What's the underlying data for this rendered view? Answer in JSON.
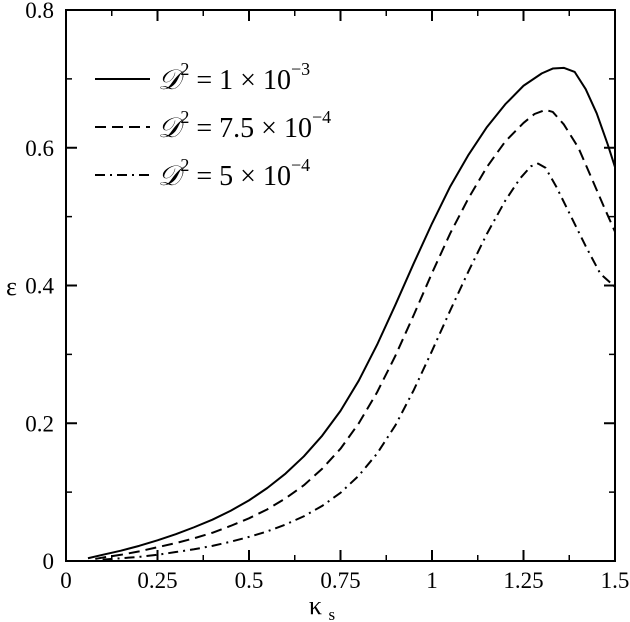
{
  "chart_data": {
    "type": "line",
    "xlabel": "κ",
    "xlabel_sub": "s",
    "ylabel": "ε",
    "xlim": [
      0,
      1.5
    ],
    "ylim": [
      0,
      0.8
    ],
    "grid": false,
    "legend_position": "top-left",
    "x_ticks": [
      0,
      0.25,
      0.5,
      0.75,
      1,
      1.25,
      1.5
    ],
    "x_tick_labels": [
      "0",
      "0.25",
      "0.5",
      "0.75",
      "1",
      "1.25",
      "1.5"
    ],
    "y_ticks": [
      0,
      0.2,
      0.4,
      0.6,
      0.8
    ],
    "y_tick_labels": [
      "0",
      "0.2",
      "0.4",
      "0.6",
      "0.8"
    ],
    "series": [
      {
        "name": "𝒟² = 1 × 10⁻³",
        "legend_symbol": "𝒟",
        "legend_sup": "2",
        "legend_text": " = 1 × 10",
        "legend_exp": "−3",
        "line_style": "solid",
        "color": "#000000",
        "points": [
          [
            0.06,
            0.004
          ],
          [
            0.1,
            0.009
          ],
          [
            0.15,
            0.015
          ],
          [
            0.2,
            0.022
          ],
          [
            0.25,
            0.03
          ],
          [
            0.3,
            0.039
          ],
          [
            0.35,
            0.049
          ],
          [
            0.4,
            0.06
          ],
          [
            0.45,
            0.073
          ],
          [
            0.5,
            0.088
          ],
          [
            0.55,
            0.106
          ],
          [
            0.6,
            0.127
          ],
          [
            0.65,
            0.152
          ],
          [
            0.7,
            0.182
          ],
          [
            0.75,
            0.218
          ],
          [
            0.8,
            0.262
          ],
          [
            0.85,
            0.314
          ],
          [
            0.9,
            0.372
          ],
          [
            0.95,
            0.432
          ],
          [
            1.0,
            0.49
          ],
          [
            1.05,
            0.544
          ],
          [
            1.1,
            0.59
          ],
          [
            1.15,
            0.63
          ],
          [
            1.2,
            0.663
          ],
          [
            1.25,
            0.69
          ],
          [
            1.3,
            0.708
          ],
          [
            1.33,
            0.715
          ],
          [
            1.36,
            0.716
          ],
          [
            1.39,
            0.71
          ],
          [
            1.42,
            0.685
          ],
          [
            1.45,
            0.65
          ],
          [
            1.48,
            0.605
          ],
          [
            1.5,
            0.572
          ]
        ]
      },
      {
        "name": "𝒟² = 7.5 × 10⁻⁴",
        "legend_symbol": "𝒟",
        "legend_sup": "2",
        "legend_text": " = 7.5 × 10",
        "legend_exp": "−4",
        "line_style": "dashed",
        "color": "#000000",
        "points": [
          [
            0.08,
            0.003
          ],
          [
            0.1,
            0.005
          ],
          [
            0.15,
            0.009
          ],
          [
            0.2,
            0.014
          ],
          [
            0.25,
            0.02
          ],
          [
            0.3,
            0.026
          ],
          [
            0.35,
            0.033
          ],
          [
            0.4,
            0.041
          ],
          [
            0.45,
            0.051
          ],
          [
            0.5,
            0.062
          ],
          [
            0.55,
            0.075
          ],
          [
            0.6,
            0.091
          ],
          [
            0.65,
            0.11
          ],
          [
            0.7,
            0.134
          ],
          [
            0.75,
            0.163
          ],
          [
            0.8,
            0.2
          ],
          [
            0.85,
            0.245
          ],
          [
            0.9,
            0.298
          ],
          [
            0.95,
            0.357
          ],
          [
            1.0,
            0.418
          ],
          [
            1.05,
            0.476
          ],
          [
            1.1,
            0.527
          ],
          [
            1.15,
            0.572
          ],
          [
            1.2,
            0.609
          ],
          [
            1.25,
            0.636
          ],
          [
            1.28,
            0.649
          ],
          [
            1.31,
            0.655
          ],
          [
            1.33,
            0.652
          ],
          [
            1.36,
            0.634
          ],
          [
            1.4,
            0.6
          ],
          [
            1.44,
            0.551
          ],
          [
            1.47,
            0.514
          ],
          [
            1.5,
            0.478
          ]
        ]
      },
      {
        "name": "𝒟² = 5 × 10⁻⁴",
        "legend_symbol": "𝒟",
        "legend_sup": "2",
        "legend_text": " = 5 × 10",
        "legend_exp": "−4",
        "line_style": "dashdot",
        "color": "#000000",
        "points": [
          [
            0.1,
            0.002
          ],
          [
            0.15,
            0.004
          ],
          [
            0.2,
            0.006
          ],
          [
            0.25,
            0.009
          ],
          [
            0.3,
            0.013
          ],
          [
            0.35,
            0.017
          ],
          [
            0.4,
            0.022
          ],
          [
            0.45,
            0.028
          ],
          [
            0.5,
            0.035
          ],
          [
            0.55,
            0.043
          ],
          [
            0.6,
            0.053
          ],
          [
            0.65,
            0.065
          ],
          [
            0.7,
            0.08
          ],
          [
            0.75,
            0.099
          ],
          [
            0.8,
            0.124
          ],
          [
            0.85,
            0.156
          ],
          [
            0.9,
            0.197
          ],
          [
            0.95,
            0.248
          ],
          [
            1.0,
            0.305
          ],
          [
            1.05,
            0.364
          ],
          [
            1.1,
            0.421
          ],
          [
            1.15,
            0.475
          ],
          [
            1.2,
            0.523
          ],
          [
            1.24,
            0.555
          ],
          [
            1.27,
            0.573
          ],
          [
            1.29,
            0.577
          ],
          [
            1.31,
            0.571
          ],
          [
            1.34,
            0.543
          ],
          [
            1.38,
            0.5
          ],
          [
            1.42,
            0.457
          ],
          [
            1.46,
            0.417
          ],
          [
            1.5,
            0.398
          ]
        ]
      }
    ]
  }
}
